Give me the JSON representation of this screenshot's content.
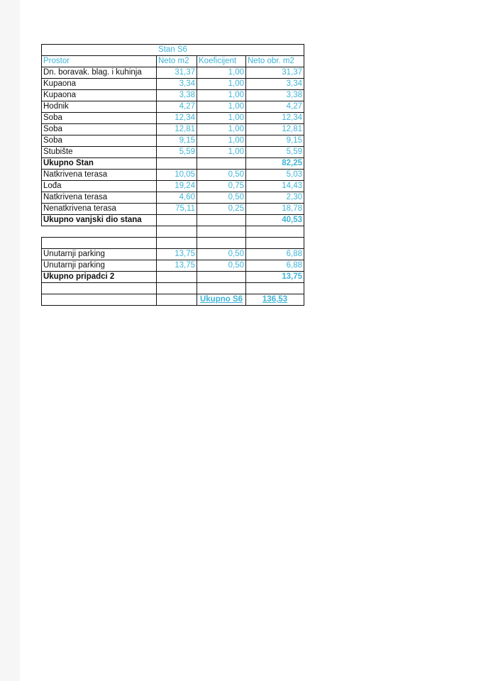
{
  "title": "Stan S6",
  "headers": [
    "Prostor",
    "Neto m2",
    "Koeficijent",
    "Neto obr. m2"
  ],
  "rows": [
    {
      "name": "Dn. boravak. blag. i kuhinja",
      "neto": "31,37",
      "koef": "1,00",
      "obr": "31,37"
    },
    {
      "name": "Kupaona",
      "neto": "3,34",
      "koef": "1,00",
      "obr": "3,34"
    },
    {
      "name": "Kupaona",
      "neto": "3,38",
      "koef": "1,00",
      "obr": "3,38"
    },
    {
      "name": "Hodnik",
      "neto": "4,27",
      "koef": "1,00",
      "obr": "4,27"
    },
    {
      "name": "Soba",
      "neto": "12,34",
      "koef": "1,00",
      "obr": "12,34"
    },
    {
      "name": "Soba",
      "neto": "12,81",
      "koef": "1,00",
      "obr": "12,81"
    },
    {
      "name": "Soba",
      "neto": "9,15",
      "koef": "1,00",
      "obr": "9,15"
    },
    {
      "name": "Stubište",
      "neto": "5,59",
      "koef": "1,00",
      "obr": "5,59"
    },
    {
      "name": "Ukupno Stan",
      "neto": "",
      "koef": "",
      "obr": "82,25",
      "bold": true
    },
    {
      "name": "Natkrivena terasa",
      "neto": "10,05",
      "koef": "0,50",
      "obr": "5,03"
    },
    {
      "name": "Lođa",
      "neto": "19,24",
      "koef": "0,75",
      "obr": "14,43"
    },
    {
      "name": "Natkrivena terasa",
      "neto": "4,60",
      "koef": "0,50",
      "obr": "2,30"
    },
    {
      "name": "Nenatkrivena terasa",
      "neto": "75,11",
      "koef": "0,25",
      "obr": "18,78"
    },
    {
      "name": "Ukupno vanjski dio stana",
      "neto": "",
      "koef": "",
      "obr": "40,53",
      "bold": true
    },
    {
      "name": "",
      "neto": "",
      "koef": "",
      "obr": "",
      "blank": true
    },
    {
      "name": "",
      "neto": "",
      "koef": "",
      "obr": ""
    },
    {
      "name": "Unutarnji parking",
      "neto": "13,75",
      "koef": "0,50",
      "obr": "6,88"
    },
    {
      "name": "Unutarnji parking",
      "neto": "13,75",
      "koef": "0,50",
      "obr": "6,88"
    },
    {
      "name": "Ukupno pripadci 2",
      "neto": "",
      "koef": "",
      "obr": "13,75",
      "bold": true
    },
    {
      "name": "",
      "neto": "",
      "koef": "",
      "obr": ""
    },
    {
      "name": "",
      "neto": "",
      "koef": "Ukupno S6",
      "obr": "136,53",
      "total": true
    }
  ],
  "colors": {
    "accent": "#3fb4d6",
    "text": "#111111"
  }
}
